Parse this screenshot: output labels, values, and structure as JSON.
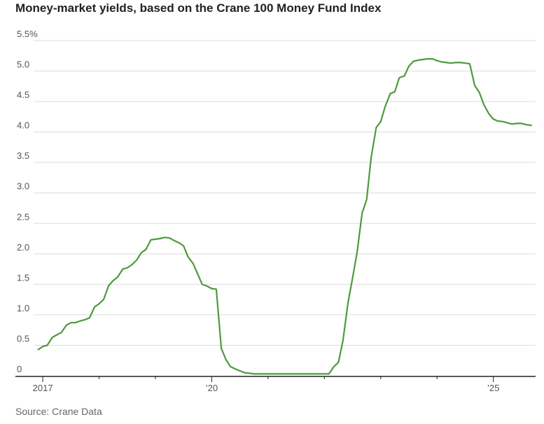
{
  "chart_data": {
    "type": "line",
    "title": "Money-market yields, based on the Crane 100 Money Fund Index",
    "source": "Source: Crane Data",
    "xlabel": "",
    "ylabel": "",
    "xlim": [
      2016.8,
      2025.75
    ],
    "ylim": [
      0,
      5.5
    ],
    "grid": true,
    "legend": "none",
    "line_color": "#4d9a3c",
    "y_ticks": [
      {
        "value": 0,
        "label": "0"
      },
      {
        "value": 0.5,
        "label": "0.5"
      },
      {
        "value": 1.0,
        "label": "1.0"
      },
      {
        "value": 1.5,
        "label": "1.5"
      },
      {
        "value": 2.0,
        "label": "2.0"
      },
      {
        "value": 2.5,
        "label": "2.5"
      },
      {
        "value": 3.0,
        "label": "3.0"
      },
      {
        "value": 3.5,
        "label": "3.5"
      },
      {
        "value": 4.0,
        "label": "4.0"
      },
      {
        "value": 4.5,
        "label": "4.5"
      },
      {
        "value": 5.0,
        "label": "5.0"
      },
      {
        "value": 5.5,
        "label": "5.5%"
      }
    ],
    "x_ticks": [
      {
        "value": 2017,
        "label": "2017"
      },
      {
        "value": 2018,
        "label": ""
      },
      {
        "value": 2019,
        "label": ""
      },
      {
        "value": 2020,
        "label": "’20"
      },
      {
        "value": 2021,
        "label": ""
      },
      {
        "value": 2022,
        "label": ""
      },
      {
        "value": 2023,
        "label": ""
      },
      {
        "value": 2024,
        "label": ""
      },
      {
        "value": 2025,
        "label": "’25"
      }
    ],
    "series": [
      {
        "x": [
          2016.92,
          2017.0,
          2017.08,
          2017.17,
          2017.25,
          2017.33,
          2017.42,
          2017.5,
          2017.58,
          2017.67,
          2017.75,
          2017.83,
          2017.92,
          2018.0,
          2018.08,
          2018.17,
          2018.25,
          2018.33,
          2018.42,
          2018.5,
          2018.58,
          2018.67,
          2018.75,
          2018.83,
          2018.92,
          2019.0,
          2019.08,
          2019.17,
          2019.25,
          2019.33,
          2019.42,
          2019.5,
          2019.58,
          2019.67,
          2019.75,
          2019.83,
          2019.92,
          2020.0,
          2020.08,
          2020.17,
          2020.25,
          2020.33,
          2020.42,
          2020.5,
          2020.58,
          2020.67,
          2020.75,
          2020.83,
          2020.92,
          2021.0,
          2021.5,
          2022.0,
          2022.08,
          2022.17,
          2022.25,
          2022.33,
          2022.42,
          2022.5,
          2022.58,
          2022.67,
          2022.75,
          2022.83,
          2022.92,
          2023.0,
          2023.08,
          2023.17,
          2023.25,
          2023.33,
          2023.42,
          2023.5,
          2023.58,
          2023.67,
          2023.75,
          2023.83,
          2023.92,
          2024.0,
          2024.08,
          2024.17,
          2024.25,
          2024.33,
          2024.42,
          2024.5,
          2024.58,
          2024.67,
          2024.75,
          2024.83,
          2024.92,
          2025.0,
          2025.08,
          2025.17,
          2025.25,
          2025.33,
          2025.42,
          2025.5,
          2025.58,
          2025.67
        ],
        "values": [
          0.43,
          0.48,
          0.5,
          0.63,
          0.67,
          0.71,
          0.83,
          0.87,
          0.87,
          0.9,
          0.92,
          0.95,
          1.13,
          1.18,
          1.25,
          1.48,
          1.56,
          1.62,
          1.75,
          1.77,
          1.82,
          1.9,
          2.02,
          2.07,
          2.23,
          2.24,
          2.25,
          2.27,
          2.26,
          2.22,
          2.18,
          2.13,
          1.95,
          1.84,
          1.67,
          1.5,
          1.47,
          1.43,
          1.42,
          0.45,
          0.27,
          0.15,
          0.11,
          0.08,
          0.05,
          0.04,
          0.03,
          0.03,
          0.03,
          0.03,
          0.03,
          0.03,
          0.03,
          0.15,
          0.22,
          0.58,
          1.2,
          1.6,
          2.02,
          2.67,
          2.89,
          3.58,
          4.07,
          4.17,
          4.42,
          4.63,
          4.66,
          4.89,
          4.92,
          5.08,
          5.16,
          5.18,
          5.19,
          5.2,
          5.2,
          5.17,
          5.15,
          5.14,
          5.13,
          5.14,
          5.14,
          5.13,
          5.12,
          4.76,
          4.65,
          4.45,
          4.3,
          4.21,
          4.18,
          4.17,
          4.15,
          4.13,
          4.14,
          4.14,
          4.12,
          4.11
        ]
      }
    ]
  }
}
